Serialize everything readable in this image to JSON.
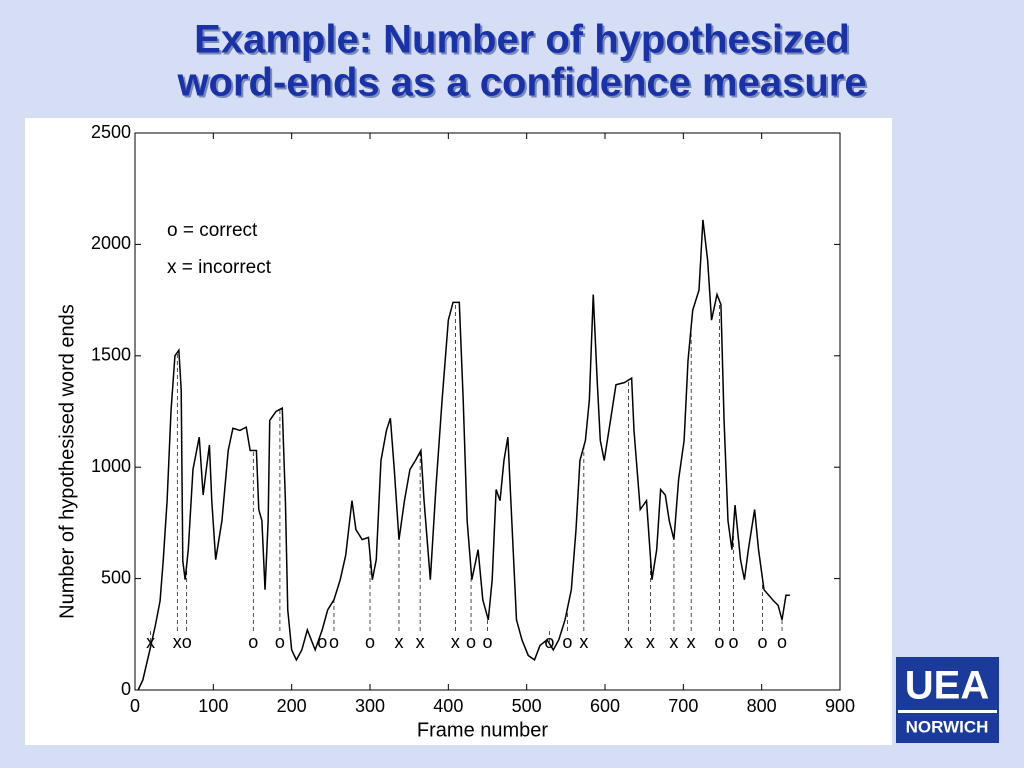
{
  "slide": {
    "title_lines": [
      "Example: Number of hypothesized",
      "word-ends as a confidence measure"
    ]
  },
  "logo": {
    "top": "UEA",
    "bottom": "NORWICH"
  },
  "chart_data": {
    "type": "line",
    "x_label": "Frame number",
    "y_label": "Number of hypothesised word ends",
    "annotations": [
      "o = correct",
      "x = incorrect"
    ],
    "color": "#000000",
    "x": [
      4,
      10,
      19,
      26,
      32,
      36,
      41,
      46,
      51,
      56,
      59,
      61,
      64,
      68,
      74,
      82,
      87,
      91,
      95,
      98,
      103,
      111,
      119,
      125,
      134,
      142,
      147,
      155,
      158,
      162,
      166,
      170,
      172,
      180,
      188,
      192,
      195,
      200,
      206,
      213,
      220,
      230,
      239,
      246,
      254,
      262,
      269,
      277,
      282,
      290,
      298,
      303,
      308,
      314,
      321,
      326,
      331,
      337,
      344,
      351,
      358,
      365,
      369,
      377,
      384,
      392,
      400,
      406,
      414,
      419,
      424,
      430,
      438,
      444,
      451,
      456,
      461,
      466,
      471,
      476,
      481,
      487,
      494,
      502,
      510,
      517,
      526,
      534,
      541,
      549,
      557,
      563,
      568,
      575,
      580,
      585,
      590,
      594,
      599,
      607,
      614,
      625,
      634,
      637,
      645,
      653,
      660,
      666,
      671,
      677,
      682,
      688,
      694,
      701,
      706,
      712,
      720,
      725,
      731,
      736,
      743,
      748,
      752,
      757,
      762,
      766,
      773,
      778,
      783,
      791,
      796,
      803,
      814,
      821,
      826,
      831,
      836
    ],
    "values": [
      0,
      45,
      180,
      290,
      400,
      580,
      850,
      1255,
      1500,
      1525,
      1345,
      580,
      495,
      630,
      990,
      1135,
      875,
      990,
      1100,
      850,
      585,
      760,
      1075,
      1175,
      1165,
      1180,
      1075,
      1075,
      810,
      760,
      450,
      760,
      1210,
      1250,
      1265,
      850,
      360,
      180,
      135,
      180,
      270,
      180,
      270,
      360,
      405,
      495,
      605,
      850,
      720,
      675,
      685,
      495,
      585,
      1030,
      1165,
      1220,
      990,
      675,
      850,
      990,
      1030,
      1075,
      850,
      495,
      900,
      1300,
      1660,
      1740,
      1740,
      1300,
      760,
      495,
      630,
      405,
      315,
      495,
      900,
      850,
      1030,
      1135,
      760,
      315,
      225,
      155,
      135,
      200,
      225,
      180,
      225,
      315,
      450,
      720,
      1030,
      1120,
      1300,
      1775,
      1390,
      1120,
      1030,
      1210,
      1370,
      1380,
      1400,
      1165,
      810,
      850,
      495,
      630,
      900,
      875,
      760,
      675,
      945,
      1120,
      1480,
      1705,
      1795,
      2110,
      1930,
      1660,
      1775,
      1730,
      1210,
      760,
      630,
      830,
      585,
      495,
      630,
      810,
      630,
      450,
      405,
      380,
      315,
      425,
      425
    ],
    "markers": {
      "x": [
        20,
        54,
        66,
        151,
        185,
        239,
        254,
        300,
        337,
        364,
        409,
        429,
        450,
        529,
        552,
        573,
        630,
        658,
        688,
        710,
        746,
        764,
        801,
        826
      ],
      "labels": [
        "x",
        "x",
        "o",
        "o",
        "o",
        "o",
        "o",
        "o",
        "x",
        "x",
        "x",
        "o",
        "o",
        "o",
        "o",
        "x",
        "x",
        "x",
        "x",
        "x",
        "o",
        "o",
        "o",
        "o"
      ]
    },
    "xlim": [
      0,
      900
    ],
    "xticks": [
      0,
      100,
      200,
      300,
      400,
      500,
      600,
      700,
      800,
      900
    ],
    "ylim": [
      0,
      2500
    ],
    "yticks": [
      0,
      500,
      1000,
      1500,
      2000,
      2500
    ]
  }
}
